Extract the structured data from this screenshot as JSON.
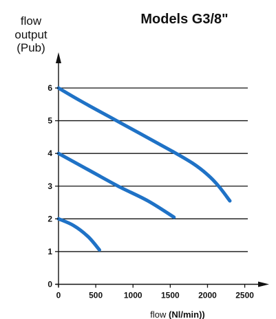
{
  "chart_data": {
    "type": "line",
    "title": "Models G3/8\"",
    "ylabel_lines": [
      "flow",
      "output",
      "(Pub)"
    ],
    "xlabel_prefix": "flow",
    "xlabel_unit": "(Nl/min))",
    "xlim": [
      0,
      2500
    ],
    "ylim": [
      0,
      6
    ],
    "xticks": [
      "0",
      "500",
      "1000",
      "1500",
      "2000",
      "2500"
    ],
    "yticks": [
      "0",
      "1",
      "2",
      "3",
      "4",
      "5",
      "6"
    ],
    "grid": "horizontal lines at y = 1 to 6",
    "series": [
      {
        "color": "#1f72c6",
        "x": [
          0,
          300,
          700,
          1100,
          1500,
          1800,
          2000,
          2150,
          2300
        ],
        "y": [
          6,
          5.6,
          5.1,
          4.6,
          4.1,
          3.7,
          3.35,
          3,
          2.55
        ]
      },
      {
        "color": "#1f72c6",
        "x": [
          0,
          400,
          800,
          1200,
          1550
        ],
        "y": [
          4,
          3.5,
          3,
          2.55,
          2.05
        ]
      },
      {
        "color": "#1f72c6",
        "x": [
          0,
          200,
          400,
          550
        ],
        "y": [
          2,
          1.8,
          1.45,
          1.05
        ]
      }
    ],
    "axis_color": "#111111",
    "line_color": "#1f72c6"
  }
}
